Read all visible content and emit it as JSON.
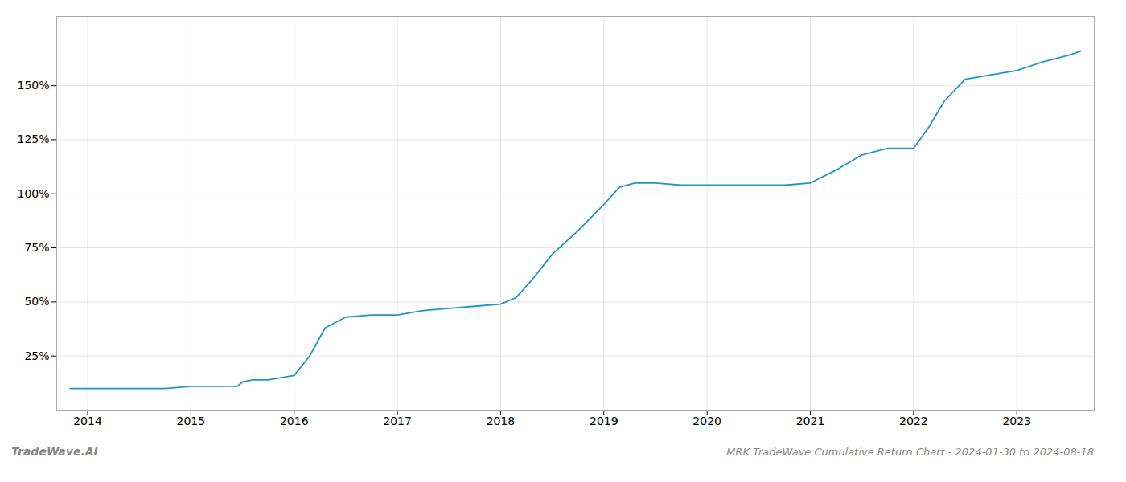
{
  "chart_data": {
    "type": "line",
    "title": "MRK TradeWave Cumulative Return Chart - 2024-01-30 to 2024-08-18",
    "annotations": [
      "TradeWave.AI"
    ],
    "color": "#2196c4",
    "x": [
      2013.83,
      2013.92,
      2014.0,
      2014.1,
      2014.25,
      2014.5,
      2014.75,
      2015.0,
      2015.25,
      2015.45,
      2015.5,
      2015.6,
      2015.75,
      2016.0,
      2016.15,
      2016.3,
      2016.5,
      2016.75,
      2017.0,
      2017.25,
      2017.5,
      2017.75,
      2018.0,
      2018.15,
      2018.3,
      2018.5,
      2018.75,
      2019.0,
      2019.15,
      2019.3,
      2019.5,
      2019.75,
      2020.0,
      2020.25,
      2020.5,
      2020.75,
      2021.0,
      2021.25,
      2021.5,
      2021.75,
      2022.0,
      2022.15,
      2022.3,
      2022.5,
      2022.75,
      2023.0,
      2023.25,
      2023.5,
      2023.62
    ],
    "values": [
      10,
      10,
      10,
      10,
      10,
      10,
      10,
      11,
      11,
      11,
      13,
      14,
      14,
      16,
      25,
      38,
      43,
      44,
      44,
      46,
      47,
      48,
      49,
      52,
      60,
      72,
      83,
      95,
      103,
      105,
      105,
      104,
      104,
      104,
      104,
      104,
      105,
      111,
      118,
      121,
      121,
      131,
      143,
      153,
      155,
      157,
      161,
      164,
      166
    ],
    "xlim": [
      2013.7,
      2023.75
    ],
    "xticks": [
      2014,
      2015,
      2016,
      2017,
      2018,
      2019,
      2020,
      2021,
      2022,
      2023
    ],
    "ylim": [
      0,
      182
    ],
    "yticks": [
      {
        "value": 25,
        "label": "25%"
      },
      {
        "value": 50,
        "label": "50%"
      },
      {
        "value": 75,
        "label": "75%"
      },
      {
        "value": 100,
        "label": "100%"
      },
      {
        "value": 125,
        "label": "125%"
      },
      {
        "value": 150,
        "label": "150%"
      }
    ],
    "grid": true
  }
}
